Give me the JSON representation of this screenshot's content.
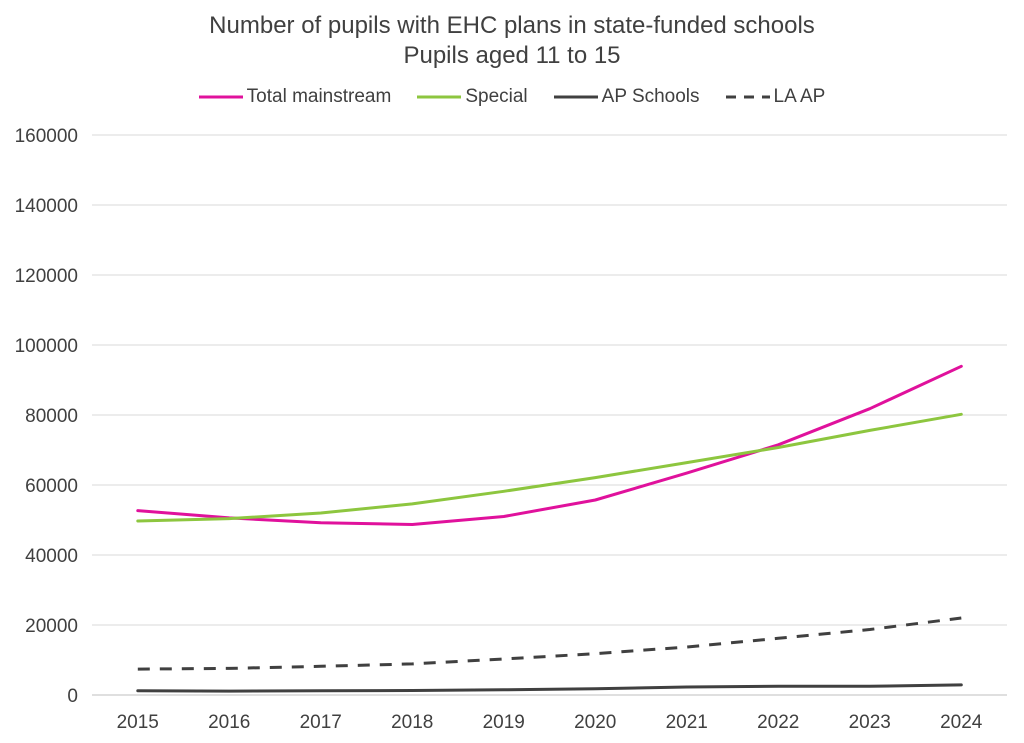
{
  "chart_data": {
    "type": "line",
    "title": "Number of pupils with EHC plans in state-funded schools",
    "subtitle": "Pupils aged 11 to 15",
    "xlabel": "",
    "ylabel": "",
    "x": [
      "2015",
      "2016",
      "2017",
      "2018",
      "2019",
      "2020",
      "2021",
      "2022",
      "2023",
      "2024"
    ],
    "ylim": [
      0,
      160000
    ],
    "yticks": [
      "0",
      "20000",
      "40000",
      "60000",
      "80000",
      "100000",
      "120000",
      "140000",
      "160000"
    ],
    "grid": true,
    "legend_position": "top",
    "series": [
      {
        "name": "Total mainstream",
        "color": "#e0119c",
        "dash": "solid",
        "values": [
          52700,
          50600,
          49200,
          48700,
          51000,
          55700,
          63400,
          71500,
          81800,
          93900
        ]
      },
      {
        "name": "Special",
        "color": "#8dc63f",
        "dash": "solid",
        "values": [
          49700,
          50400,
          52000,
          54600,
          58200,
          62100,
          66400,
          70700,
          75600,
          80200
        ]
      },
      {
        "name": "AP Schools",
        "color": "#404040",
        "dash": "solid",
        "values": [
          1200,
          1100,
          1200,
          1300,
          1500,
          1800,
          2300,
          2500,
          2500,
          2900
        ]
      },
      {
        "name": "LA AP",
        "color": "#404040",
        "dash": "dashed",
        "values": [
          7400,
          7600,
          8200,
          8900,
          10300,
          11800,
          13700,
          16200,
          18700,
          22000
        ]
      }
    ]
  }
}
